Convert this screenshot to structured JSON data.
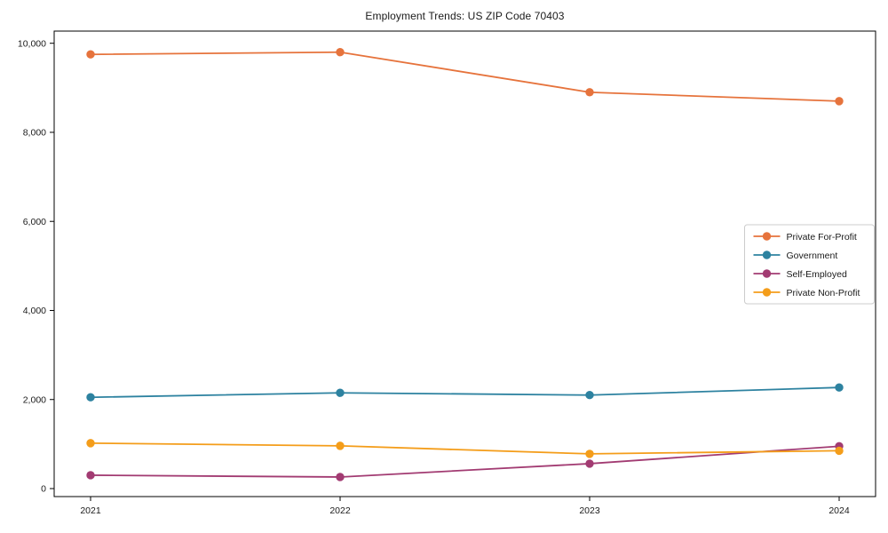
{
  "title": "Employment Trends: US ZIP Code 70403",
  "chart_data": {
    "type": "line",
    "title": "Employment Trends: US ZIP Code 70403",
    "xlabel": "",
    "ylabel": "",
    "categories": [
      "2021",
      "2022",
      "2023",
      "2024"
    ],
    "series": [
      {
        "name": "Private For-Profit",
        "color": "#e6733c",
        "values": [
          9750,
          9800,
          8900,
          8700
        ]
      },
      {
        "name": "Government",
        "color": "#2d82a0",
        "values": [
          2050,
          2150,
          2100,
          2270
        ]
      },
      {
        "name": "Self-Employed",
        "color": "#a23b72",
        "values": [
          300,
          260,
          560,
          950
        ]
      },
      {
        "name": "Private Non-Profit",
        "color": "#f49d1a",
        "values": [
          1020,
          960,
          780,
          850
        ]
      }
    ],
    "ylim": [
      0,
      10300
    ],
    "yticks": {
      "values": [
        0,
        2000,
        4000,
        6000,
        8000,
        10000
      ],
      "labels": [
        "0",
        "2,000",
        "4,000",
        "6,000",
        "8,000",
        "10,000"
      ]
    },
    "grid": false,
    "marker": "circle",
    "legend_position": "right",
    "legend_border_color": "#cccccc",
    "axis_color": "#000000",
    "text_color": "#1a1a1a"
  }
}
